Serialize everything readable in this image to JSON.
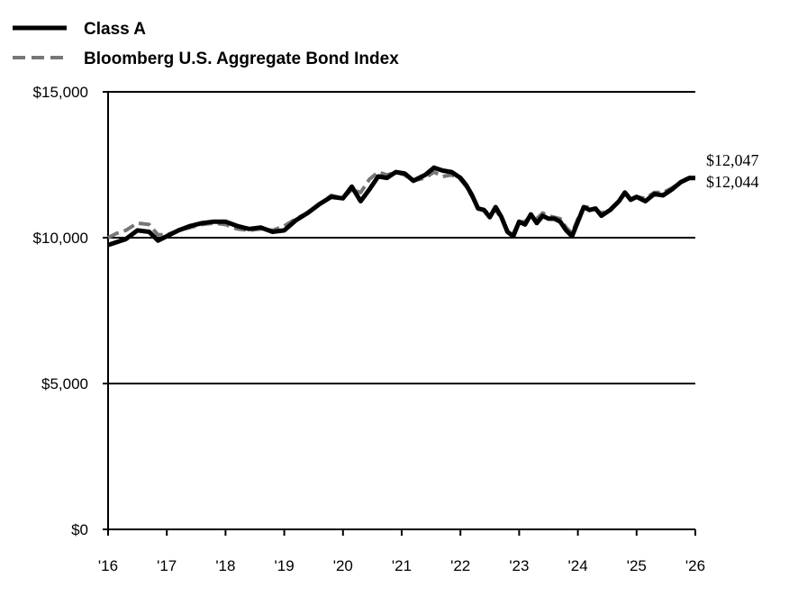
{
  "chart_data": {
    "type": "line",
    "title": "",
    "xlabel": "",
    "ylabel": "",
    "ylim": [
      0,
      15000
    ],
    "xlim": [
      2016,
      2026
    ],
    "x_ticks": [
      "'16",
      "'17",
      "'18",
      "'19",
      "'20",
      "'21",
      "'22",
      "'23",
      "'24",
      "'25",
      "'26"
    ],
    "y_ticks": [
      "$0",
      "$5,000",
      "$10,000",
      "$15,000"
    ],
    "y_tick_values": [
      0,
      5000,
      10000,
      15000
    ],
    "grid": "horizontal",
    "legend_position": "top-left",
    "end_labels": [
      "$12,047",
      "$12,044"
    ],
    "series": [
      {
        "name": "Class A",
        "style": "solid",
        "color": "#000000",
        "x": [
          2016.0,
          2016.15,
          2016.3,
          2016.5,
          2016.7,
          2016.85,
          2017.0,
          2017.2,
          2017.4,
          2017.6,
          2017.8,
          2018.0,
          2018.2,
          2018.4,
          2018.6,
          2018.8,
          2019.0,
          2019.2,
          2019.4,
          2019.6,
          2019.8,
          2020.0,
          2020.15,
          2020.3,
          2020.45,
          2020.6,
          2020.75,
          2020.9,
          2021.05,
          2021.2,
          2021.4,
          2021.55,
          2021.7,
          2021.85,
          2022.0,
          2022.1,
          2022.2,
          2022.3,
          2022.4,
          2022.5,
          2022.6,
          2022.7,
          2022.8,
          2022.9,
          2023.0,
          2023.1,
          2023.2,
          2023.3,
          2023.4,
          2023.5,
          2023.6,
          2023.7,
          2023.8,
          2023.9,
          2024.0,
          2024.1,
          2024.2,
          2024.3,
          2024.4,
          2024.55,
          2024.7,
          2024.8,
          2024.9,
          2025.0,
          2025.15,
          2025.3,
          2025.45,
          2025.6,
          2025.75,
          2025.9,
          2026.0
        ],
        "y": [
          9750,
          9850,
          9950,
          10250,
          10200,
          9900,
          10050,
          10250,
          10400,
          10500,
          10550,
          10550,
          10400,
          10300,
          10350,
          10200,
          10250,
          10600,
          10850,
          11150,
          11400,
          11350,
          11750,
          11250,
          11650,
          12100,
          12050,
          12250,
          12200,
          11950,
          12150,
          12400,
          12300,
          12250,
          12050,
          11800,
          11450,
          11000,
          10950,
          10700,
          11050,
          10700,
          10200,
          10050,
          10550,
          10450,
          10800,
          10500,
          10750,
          10650,
          10650,
          10550,
          10250,
          10050,
          10550,
          11050,
          10950,
          11000,
          10750,
          10950,
          11250,
          11550,
          11300,
          11400,
          11250,
          11500,
          11450,
          11650,
          11900,
          12050,
          12044
        ]
      },
      {
        "name": "Bloomberg U.S. Aggregate Bond Index",
        "style": "dashed",
        "color": "#777777",
        "x": [
          2016.0,
          2016.15,
          2016.3,
          2016.5,
          2016.7,
          2016.85,
          2017.0,
          2017.2,
          2017.4,
          2017.6,
          2017.8,
          2018.0,
          2018.2,
          2018.4,
          2018.6,
          2018.8,
          2019.0,
          2019.2,
          2019.4,
          2019.6,
          2019.8,
          2020.0,
          2020.15,
          2020.3,
          2020.45,
          2020.6,
          2020.75,
          2020.9,
          2021.05,
          2021.2,
          2021.4,
          2021.55,
          2021.7,
          2021.85,
          2022.0,
          2022.1,
          2022.2,
          2022.3,
          2022.4,
          2022.5,
          2022.6,
          2022.7,
          2022.8,
          2022.9,
          2023.0,
          2023.1,
          2023.2,
          2023.3,
          2023.4,
          2023.5,
          2023.6,
          2023.7,
          2023.8,
          2023.9,
          2024.0,
          2024.1,
          2024.2,
          2024.3,
          2024.4,
          2024.55,
          2024.7,
          2024.8,
          2024.9,
          2025.0,
          2025.15,
          2025.3,
          2025.45,
          2025.6,
          2025.75,
          2025.9,
          2026.0
        ],
        "y": [
          10000,
          10150,
          10250,
          10500,
          10450,
          10100,
          10100,
          10250,
          10350,
          10450,
          10500,
          10450,
          10300,
          10250,
          10300,
          10250,
          10400,
          10650,
          10850,
          11150,
          11450,
          11350,
          11650,
          11550,
          12000,
          12250,
          12150,
          12250,
          12150,
          11950,
          12050,
          12250,
          12100,
          12150,
          12000,
          11750,
          11400,
          11000,
          10950,
          10800,
          10950,
          10650,
          10250,
          10150,
          10550,
          10550,
          10750,
          10650,
          10850,
          10750,
          10700,
          10650,
          10350,
          10150,
          10650,
          11050,
          11050,
          10950,
          10850,
          10950,
          11250,
          11550,
          11350,
          11400,
          11350,
          11550,
          11550,
          11700,
          11900,
          12050,
          12047
        ]
      }
    ]
  }
}
